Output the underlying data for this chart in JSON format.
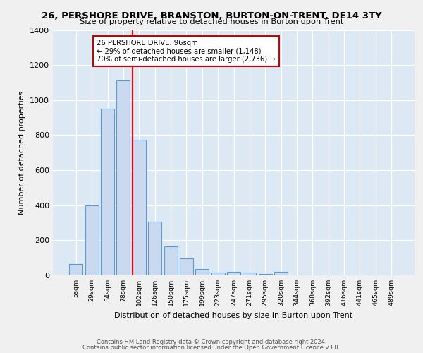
{
  "title1": "26, PERSHORE DRIVE, BRANSTON, BURTON-ON-TRENT, DE14 3TY",
  "title2": "Size of property relative to detached houses in Burton upon Trent",
  "xlabel": "Distribution of detached houses by size in Burton upon Trent",
  "ylabel": "Number of detached properties",
  "bin_labels": [
    "5sqm",
    "29sqm",
    "54sqm",
    "78sqm",
    "102sqm",
    "126sqm",
    "150sqm",
    "175sqm",
    "199sqm",
    "223sqm",
    "247sqm",
    "271sqm",
    "295sqm",
    "320sqm",
    "344sqm",
    "368sqm",
    "392sqm",
    "416sqm",
    "441sqm",
    "465sqm",
    "489sqm"
  ],
  "bar_values": [
    65,
    400,
    950,
    1110,
    775,
    305,
    165,
    95,
    38,
    15,
    20,
    15,
    8,
    20,
    0,
    0,
    0,
    0,
    0,
    0,
    0
  ],
  "bar_color": "#c9d9f0",
  "bar_edge_color": "#5b9bd5",
  "red_line_index": 4,
  "annotation_text": "26 PERSHORE DRIVE: 96sqm\n← 29% of detached houses are smaller (1,148)\n70% of semi-detached houses are larger (2,736) →",
  "annotation_box_color": "#ffffff",
  "annotation_box_edge": "#cc0000",
  "ylim": [
    0,
    1400
  ],
  "yticks": [
    0,
    200,
    400,
    600,
    800,
    1000,
    1200,
    1400
  ],
  "footer1": "Contains HM Land Registry data © Crown copyright and database right 2024.",
  "footer2": "Contains public sector information licensed under the Open Government Licence v3.0.",
  "bg_color": "#dce9f5",
  "grid_color": "#ffffff",
  "fig_bg_color": "#f0f0f0"
}
